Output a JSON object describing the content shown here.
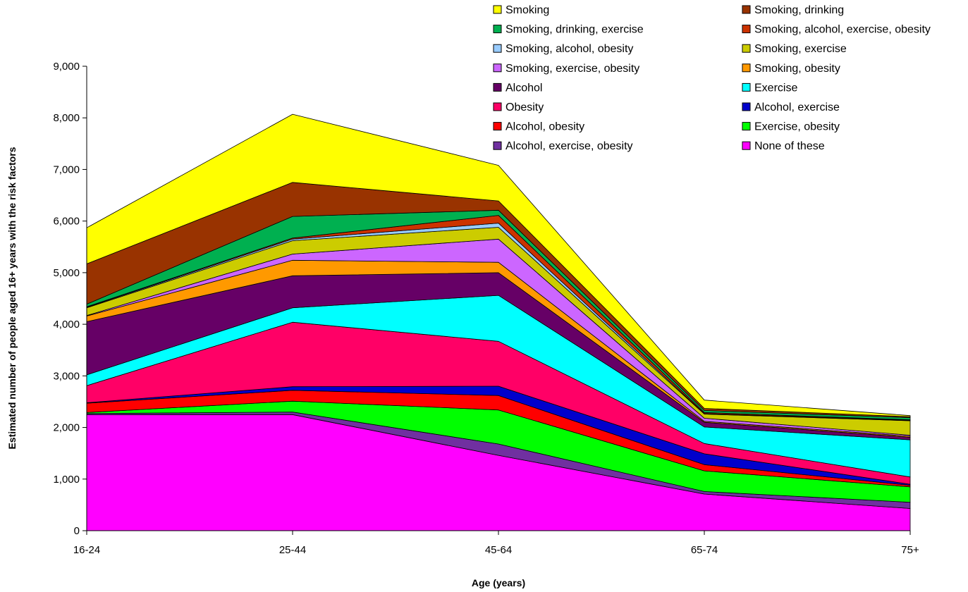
{
  "chart_data": {
    "type": "area",
    "stacked": true,
    "categories": [
      "16-24",
      "25-44",
      "45-64",
      "65-74",
      "75+"
    ],
    "xlabel": "Age  (years)",
    "ylabel": "Estimated number of people aged 16+ years with the risk factors",
    "ylim": [
      0,
      9000
    ],
    "yticks": [
      "0",
      "1,000",
      "2,000",
      "3,000",
      "4,000",
      "5,000",
      "6,000",
      "7,000",
      "8,000",
      "9,000"
    ],
    "grid": false,
    "legend_position": "top-right",
    "series": [
      {
        "name": "None of these",
        "color": "#FF00FF",
        "values": [
          2250,
          2250,
          1460,
          710,
          430
        ]
      },
      {
        "name": "Alcohol, exercise, obesity",
        "color": "#7030A0",
        "values": [
          20,
          50,
          220,
          50,
          120
        ]
      },
      {
        "name": "Exercise, obesity",
        "color": "#00FF00",
        "values": [
          20,
          210,
          660,
          400,
          300
        ]
      },
      {
        "name": "Alcohol, obesity",
        "color": "#FF0000",
        "values": [
          180,
          210,
          280,
          120,
          30
        ]
      },
      {
        "name": "Alcohol, exercise",
        "color": "#0000CC",
        "values": [
          10,
          70,
          180,
          210,
          20
        ]
      },
      {
        "name": "Obesity",
        "color": "#FF0066",
        "values": [
          330,
          1250,
          870,
          200,
          140
        ]
      },
      {
        "name": "Exercise",
        "color": "#00FFFF",
        "values": [
          210,
          280,
          890,
          320,
          720
        ]
      },
      {
        "name": "Alcohol",
        "color": "#660066",
        "values": [
          1030,
          620,
          440,
          90,
          50
        ]
      },
      {
        "name": "Smoking, obesity",
        "color": "#FF9900",
        "values": [
          110,
          300,
          200,
          20,
          20
        ]
      },
      {
        "name": "Smoking, exercise, obesity",
        "color": "#CC66FF",
        "values": [
          10,
          120,
          450,
          60,
          20
        ]
      },
      {
        "name": "Smoking, exercise",
        "color": "#CCCC00",
        "values": [
          150,
          260,
          230,
          80,
          280
        ]
      },
      {
        "name": "Smoking, alcohol, obesity",
        "color": "#99CCFF",
        "values": [
          10,
          30,
          80,
          10,
          10
        ]
      },
      {
        "name": "Smoking, alcohol, exercise, obesity",
        "color": "#CC3300",
        "values": [
          10,
          20,
          150,
          20,
          10
        ]
      },
      {
        "name": "Smoking, drinking, exercise",
        "color": "#00B050",
        "values": [
          50,
          420,
          100,
          40,
          40
        ]
      },
      {
        "name": "Smoking, drinking",
        "color": "#993300",
        "values": [
          780,
          660,
          180,
          40,
          20
        ]
      },
      {
        "name": "Smoking",
        "color": "#FFFF00",
        "values": [
          700,
          1320,
          690,
          160,
          20
        ]
      }
    ],
    "legend_order": [
      "Smoking",
      "Smoking, drinking",
      "Smoking, drinking, exercise",
      "Smoking, alcohol, exercise, obesity",
      "Smoking, alcohol, obesity",
      "Smoking, exercise",
      "Smoking, exercise, obesity",
      "Smoking, obesity",
      "Alcohol",
      "Exercise",
      "Obesity",
      "Alcohol, exercise",
      "Alcohol, obesity",
      "Exercise, obesity",
      "Alcohol, exercise, obesity",
      "None of these"
    ]
  }
}
